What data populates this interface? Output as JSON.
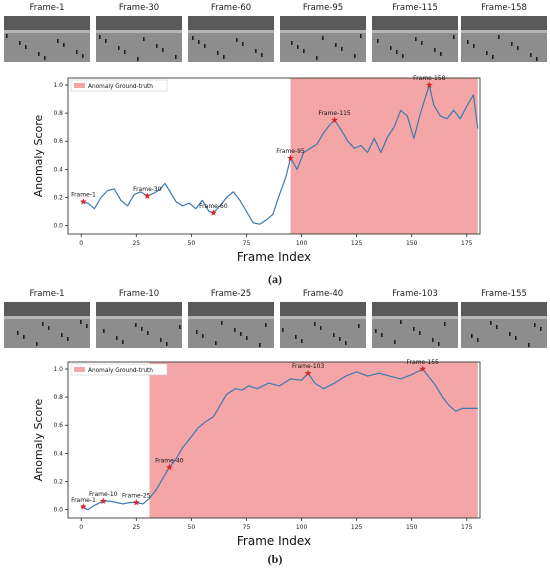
{
  "panel_a": {
    "frames": [
      "Frame-1",
      "Frame-30",
      "Frame-60",
      "Frame-95",
      "Frame-115",
      "Frame-158"
    ],
    "caption": "(a)"
  },
  "panel_b": {
    "frames": [
      "Frame-1",
      "Frame-10",
      "Frame-25",
      "Frame-40",
      "Frame-103",
      "Frame-155"
    ],
    "caption": "(b)"
  },
  "colors": {
    "line": "#3b79b0",
    "star": "#d62728",
    "shade": "#f4a6a6"
  },
  "chart_data": [
    {
      "type": "line",
      "xlabel": "Frame Index",
      "ylabel": "Anomaly Score",
      "xlim": [
        -6,
        181
      ],
      "ylim": [
        -0.06,
        1.05
      ],
      "xticks": [
        0,
        25,
        50,
        75,
        100,
        125,
        150,
        175
      ],
      "yticks": [
        0.0,
        0.2,
        0.4,
        0.6,
        0.8,
        1.0
      ],
      "legend": {
        "label": "Anomaly Ground-truth",
        "placement": "top-left"
      },
      "shaded_region": [
        95,
        180
      ],
      "x": [
        0,
        3,
        6,
        9,
        12,
        15,
        18,
        21,
        24,
        27,
        30,
        33,
        36,
        38,
        40,
        43,
        46,
        49,
        52,
        55,
        58,
        60,
        63,
        66,
        69,
        72,
        75,
        78,
        81,
        84,
        87,
        90,
        93,
        95,
        98,
        101,
        104,
        107,
        110,
        113,
        115,
        118,
        121,
        124,
        127,
        130,
        133,
        136,
        139,
        142,
        145,
        148,
        151,
        154,
        156,
        158,
        160,
        163,
        166,
        169,
        172,
        175,
        178,
        180
      ],
      "y": [
        0.17,
        0.16,
        0.12,
        0.2,
        0.25,
        0.26,
        0.18,
        0.14,
        0.22,
        0.24,
        0.21,
        0.23,
        0.26,
        0.3,
        0.25,
        0.17,
        0.14,
        0.16,
        0.12,
        0.18,
        0.1,
        0.09,
        0.14,
        0.2,
        0.24,
        0.18,
        0.1,
        0.02,
        0.01,
        0.04,
        0.08,
        0.22,
        0.35,
        0.48,
        0.4,
        0.52,
        0.55,
        0.58,
        0.66,
        0.72,
        0.75,
        0.68,
        0.6,
        0.55,
        0.57,
        0.52,
        0.62,
        0.52,
        0.63,
        0.7,
        0.82,
        0.78,
        0.62,
        0.8,
        0.9,
        1.0,
        0.86,
        0.78,
        0.76,
        0.82,
        0.76,
        0.85,
        0.93,
        0.69
      ],
      "annotations": [
        {
          "label": "Frame-1",
          "x": 1,
          "y": 0.17
        },
        {
          "label": "Frame-30",
          "x": 30,
          "y": 0.21
        },
        {
          "label": "Frame-60",
          "x": 60,
          "y": 0.09
        },
        {
          "label": "Frame-95",
          "x": 95,
          "y": 0.48
        },
        {
          "label": "Frame-115",
          "x": 115,
          "y": 0.75
        },
        {
          "label": "Frame-158",
          "x": 158,
          "y": 1.0
        }
      ]
    },
    {
      "type": "line",
      "xlabel": "Frame Index",
      "ylabel": "Anomaly Score",
      "xlim": [
        -6,
        181
      ],
      "ylim": [
        -0.06,
        1.05
      ],
      "xticks": [
        0,
        25,
        50,
        75,
        100,
        125,
        150,
        175
      ],
      "yticks": [
        0.0,
        0.2,
        0.4,
        0.6,
        0.8,
        1.0
      ],
      "legend": {
        "label": "Anomaly Ground-truth",
        "placement": "top-left"
      },
      "shaded_region": [
        31,
        180
      ],
      "x": [
        0,
        3,
        6,
        10,
        13,
        16,
        19,
        22,
        25,
        28,
        31,
        34,
        37,
        40,
        43,
        46,
        50,
        53,
        56,
        60,
        63,
        66,
        70,
        73,
        76,
        80,
        85,
        90,
        95,
        100,
        103,
        106,
        110,
        115,
        120,
        125,
        130,
        135,
        140,
        145,
        150,
        155,
        158,
        161,
        164,
        167,
        170,
        173,
        176,
        180
      ],
      "y": [
        0.02,
        0.0,
        0.03,
        0.06,
        0.06,
        0.05,
        0.04,
        0.05,
        0.05,
        0.04,
        0.08,
        0.14,
        0.22,
        0.3,
        0.36,
        0.44,
        0.52,
        0.58,
        0.62,
        0.66,
        0.74,
        0.82,
        0.86,
        0.85,
        0.88,
        0.86,
        0.9,
        0.88,
        0.93,
        0.92,
        0.97,
        0.9,
        0.86,
        0.9,
        0.95,
        0.98,
        0.95,
        0.97,
        0.95,
        0.93,
        0.96,
        1.0,
        0.94,
        0.88,
        0.8,
        0.74,
        0.7,
        0.72,
        0.72,
        0.72
      ],
      "annotations": [
        {
          "label": "Frame-1",
          "x": 1,
          "y": 0.02
        },
        {
          "label": "Frame-10",
          "x": 10,
          "y": 0.06
        },
        {
          "label": "Frame-25",
          "x": 25,
          "y": 0.05
        },
        {
          "label": "Frame-40",
          "x": 40,
          "y": 0.3
        },
        {
          "label": "Frame-103",
          "x": 103,
          "y": 0.97
        },
        {
          "label": "Frame-155",
          "x": 155,
          "y": 1.0
        }
      ]
    }
  ]
}
